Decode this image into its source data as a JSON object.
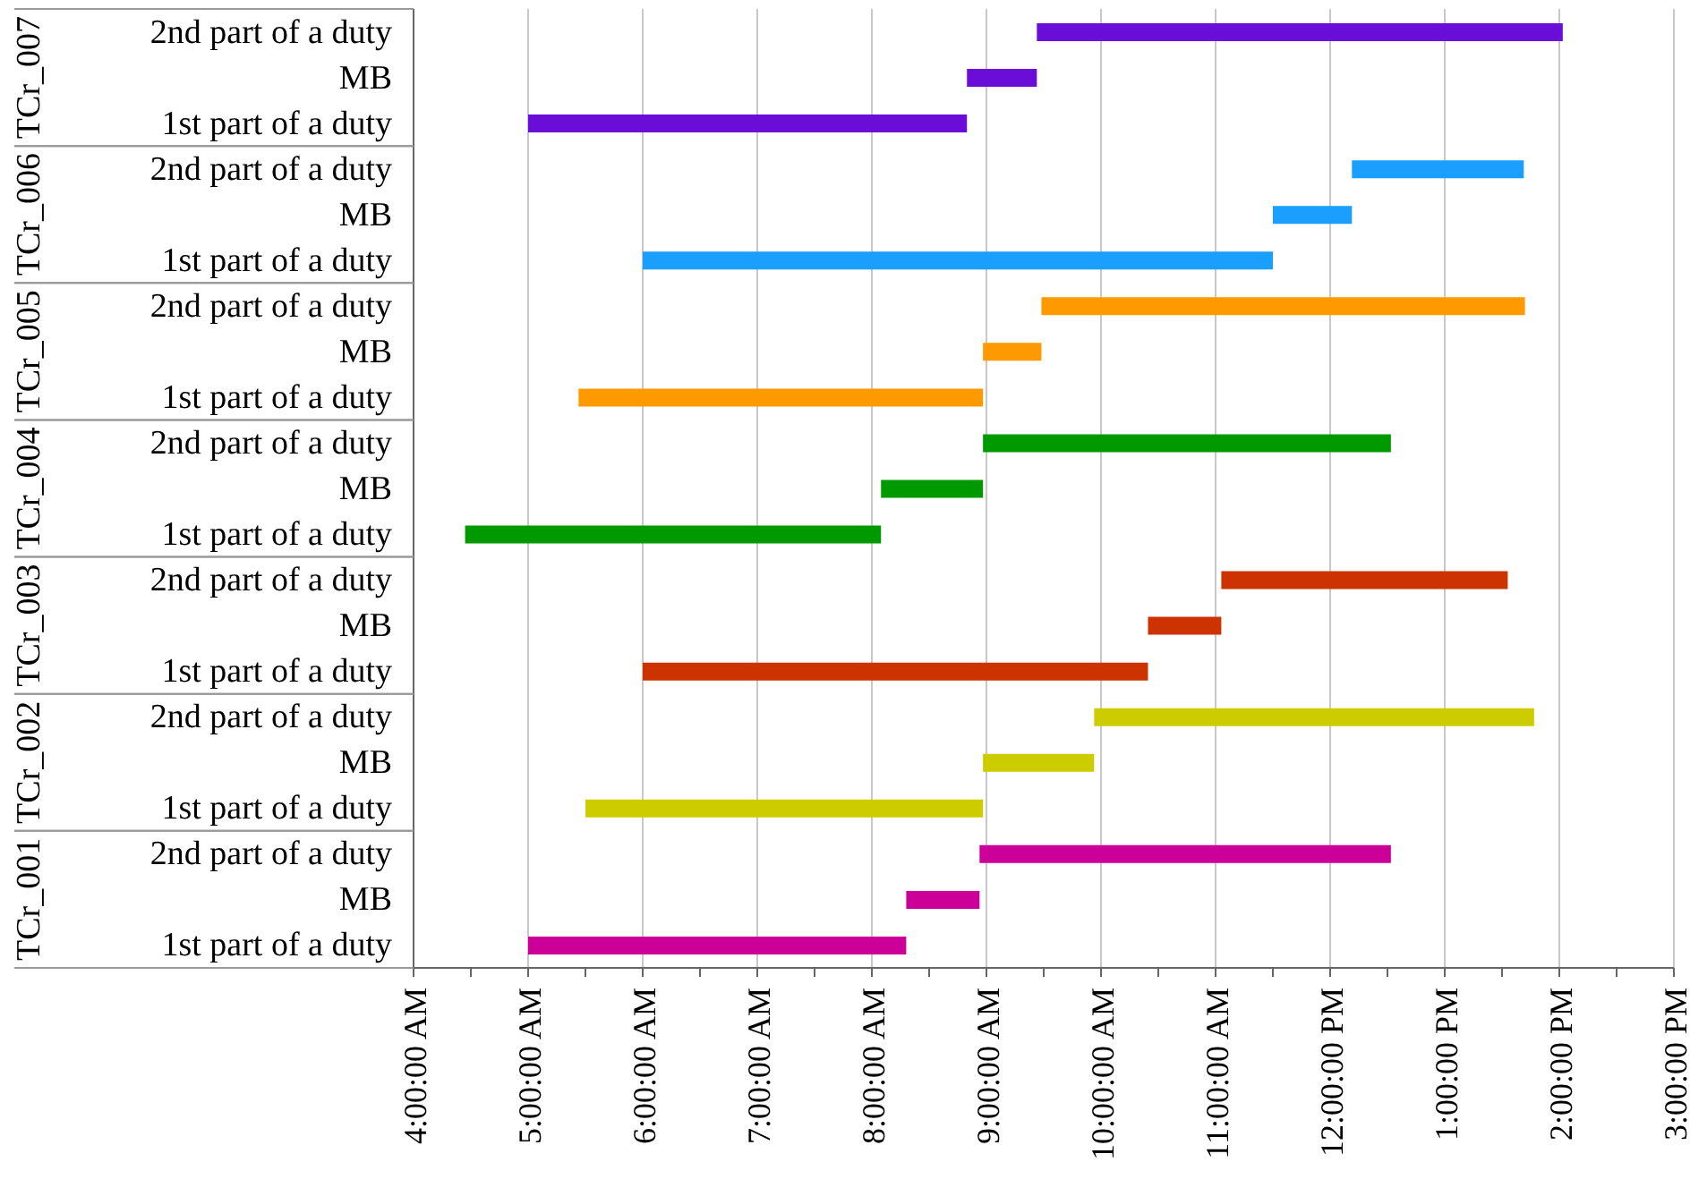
{
  "chart_data": {
    "type": "bar",
    "orientation": "horizontal",
    "categories": [
      "2nd part of a duty",
      "MB",
      "1st part of a duty",
      "2nd part of a duty",
      "MB",
      "1st part of a duty",
      "2nd part of a duty",
      "MB",
      "1st part of a duty",
      "2nd part of a duty",
      "MB",
      "1st part of a duty",
      "2nd part of a duty",
      "MB",
      "1st part of a duty",
      "2nd part of a duty",
      "MB",
      "1st part of a duty",
      "2nd part of a duty",
      "MB",
      "1st part of a duty"
    ],
    "base": [
      9.44,
      8.83,
      5.0,
      12.19,
      11.5,
      6.0,
      9.48,
      8.97,
      5.44,
      8.97,
      8.08,
      4.45,
      11.05,
      10.41,
      6.0,
      9.94,
      8.97,
      5.5,
      8.94,
      8.3,
      5.0
    ],
    "values": [
      4.59,
      0.61,
      3.83,
      1.5,
      0.69,
      5.5,
      4.22,
      0.51,
      3.53,
      3.56,
      0.89,
      3.63,
      2.5,
      0.64,
      4.41,
      3.84,
      0.97,
      3.47,
      3.59,
      0.64,
      3.3
    ],
    "colors": [
      "#6a0dd6",
      "#6a0dd6",
      "#6a0dd6",
      "#1a9fff",
      "#1a9fff",
      "#1a9fff",
      "#ff9900",
      "#ff9900",
      "#ff9900",
      "#009900",
      "#009900",
      "#009900",
      "#cc3300",
      "#cc3300",
      "#cc3300",
      "#cccc00",
      "#cccc00",
      "#cccc00",
      "#cc0099",
      "#cc0099",
      "#cc0099"
    ],
    "annotations": [
      "TCr_007",
      "TCr_006",
      "TCr_005",
      "TCr_004",
      "TCr_003",
      "TCr_002",
      "TCr_001"
    ],
    "xlim": [
      4,
      15
    ],
    "xticks": [
      {
        "value": 4,
        "label": "4:00:00 AM"
      },
      {
        "value": 4.5,
        "label": null
      },
      {
        "value": 5,
        "label": "5:00:00 AM"
      },
      {
        "value": 5.5,
        "label": null
      },
      {
        "value": 6,
        "label": "6:00:00 AM"
      },
      {
        "value": 6.5,
        "label": null
      },
      {
        "value": 7,
        "label": "7:00:00 AM"
      },
      {
        "value": 7.5,
        "label": null
      },
      {
        "value": 8,
        "label": "8:00:00 AM"
      },
      {
        "value": 8.5,
        "label": null
      },
      {
        "value": 9,
        "label": "9:00:00 AM"
      },
      {
        "value": 9.5,
        "label": null
      },
      {
        "value": 10,
        "label": "10:00:00 AM"
      },
      {
        "value": 10.5,
        "label": null
      },
      {
        "value": 11,
        "label": "11:00:00 AM"
      },
      {
        "value": 11.5,
        "label": null
      },
      {
        "value": 12,
        "label": "12:00:00 PM"
      },
      {
        "value": 12.5,
        "label": null
      },
      {
        "value": 13,
        "label": "1:00:00 PM"
      },
      {
        "value": 13.5,
        "label": null
      },
      {
        "value": 14,
        "label": "2:00:00 PM"
      },
      {
        "value": 14.5,
        "label": null
      },
      {
        "value": 15,
        "label": "3:00:00 PM"
      }
    ],
    "grid": "x",
    "legend": false
  }
}
